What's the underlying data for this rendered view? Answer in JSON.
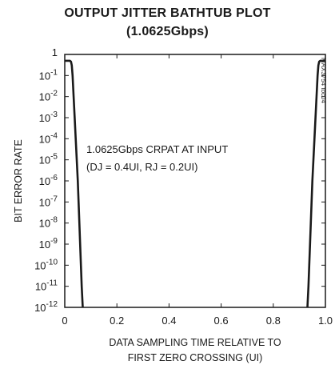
{
  "chart_data": {
    "type": "line",
    "title_line1": "OUTPUT JITTER BATHTUB PLOT",
    "title_line2": "(1.0625Gbps)",
    "xlabel_line1": "DATA SAMPLING TIME RELATIVE TO",
    "xlabel_line2": "FIRST ZERO CROSSING (UI)",
    "ylabel": "BIT ERROR RATE",
    "yscale": "log",
    "xlim": [
      0,
      1.0
    ],
    "ylim_exp": [
      -12,
      0
    ],
    "x_ticks": [
      {
        "value": 0,
        "label": "0"
      },
      {
        "value": 0.2,
        "label": "0.2"
      },
      {
        "value": 0.4,
        "label": "0.4"
      },
      {
        "value": 0.6,
        "label": "0.6"
      },
      {
        "value": 0.8,
        "label": "0.8"
      },
      {
        "value": 1.0,
        "label": "1.0"
      }
    ],
    "y_ticks": [
      {
        "exp": 0,
        "base": "1",
        "sup": ""
      },
      {
        "exp": -1,
        "base": "10",
        "sup": "-1"
      },
      {
        "exp": -2,
        "base": "10",
        "sup": "-2"
      },
      {
        "exp": -3,
        "base": "10",
        "sup": "-3"
      },
      {
        "exp": -4,
        "base": "10",
        "sup": "-4"
      },
      {
        "exp": -5,
        "base": "10",
        "sup": "-5"
      },
      {
        "exp": -6,
        "base": "10",
        "sup": "-6"
      },
      {
        "exp": -7,
        "base": "10",
        "sup": "-7"
      },
      {
        "exp": -8,
        "base": "10",
        "sup": "-8"
      },
      {
        "exp": -9,
        "base": "10",
        "sup": "-9"
      },
      {
        "exp": -10,
        "base": "10",
        "sup": "-10"
      },
      {
        "exp": -11,
        "base": "10",
        "sup": "-11"
      },
      {
        "exp": -12,
        "base": "10",
        "sup": "-12"
      }
    ],
    "grid": false,
    "annotation_line1": "1.0625Gbps CRPAT AT INPUT",
    "annotation_line2": "(DJ = 0.4UI, RJ = 0.2UI)",
    "watermark": "MAX3754 toc04",
    "series": [
      {
        "color": "#1a1a1a",
        "points": [
          [
            0.0,
            0.5
          ],
          [
            0.005,
            0.5
          ],
          [
            0.012,
            0.5
          ],
          [
            0.02,
            0.5
          ],
          [
            0.024,
            0.45
          ],
          [
            0.027,
            0.3
          ],
          [
            0.03,
            0.1
          ],
          [
            0.034,
            0.01
          ],
          [
            0.038,
            0.001
          ],
          [
            0.042,
            0.0001
          ],
          [
            0.046,
            1e-05
          ],
          [
            0.05,
            1e-06
          ],
          [
            0.053,
            1e-07
          ],
          [
            0.056,
            1e-08
          ],
          [
            0.059,
            1e-09
          ],
          [
            0.062,
            1e-10
          ],
          [
            0.065,
            1e-11
          ],
          [
            0.069,
            1e-12
          ]
        ]
      },
      {
        "color": "#1a1a1a",
        "points": [
          [
            0.931,
            1e-12
          ],
          [
            0.935,
            1e-11
          ],
          [
            0.938,
            1e-10
          ],
          [
            0.941,
            1e-09
          ],
          [
            0.944,
            1e-08
          ],
          [
            0.947,
            1e-07
          ],
          [
            0.95,
            1e-06
          ],
          [
            0.954,
            1e-05
          ],
          [
            0.958,
            0.0001
          ],
          [
            0.962,
            0.001
          ],
          [
            0.966,
            0.01
          ],
          [
            0.97,
            0.1
          ],
          [
            0.973,
            0.3
          ],
          [
            0.976,
            0.45
          ],
          [
            0.98,
            0.5
          ],
          [
            0.988,
            0.5
          ],
          [
            0.995,
            0.5
          ],
          [
            1.0,
            0.5
          ]
        ]
      }
    ]
  }
}
